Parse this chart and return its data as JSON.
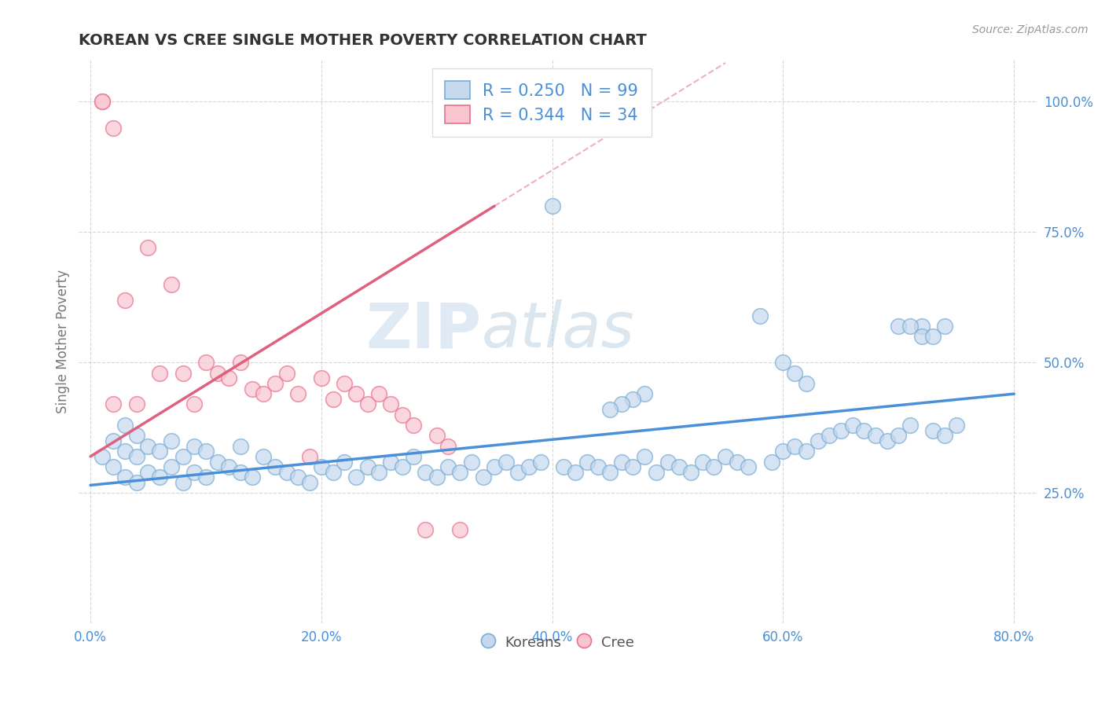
{
  "title": "KOREAN VS CREE SINGLE MOTHER POVERTY CORRELATION CHART",
  "source": "Source: ZipAtlas.com",
  "ylabel": "Single Mother Poverty",
  "xlim": [
    -0.01,
    0.82
  ],
  "ylim": [
    0.0,
    1.08
  ],
  "xtick_labels": [
    "0.0%",
    "20.0%",
    "40.0%",
    "60.0%",
    "80.0%"
  ],
  "xtick_vals": [
    0.0,
    0.2,
    0.4,
    0.6,
    0.8
  ],
  "ytick_labels": [
    "25.0%",
    "50.0%",
    "75.0%",
    "100.0%"
  ],
  "ytick_vals": [
    0.25,
    0.5,
    0.75,
    1.0
  ],
  "korean_fill": "#c5d8ee",
  "korean_edge": "#7aadd4",
  "cree_fill": "#f9c6d0",
  "cree_edge": "#e87090",
  "korean_line_color": "#4a90d9",
  "cree_line_color": "#e06080",
  "watermark_zip": "ZIP",
  "watermark_atlas": "atlas",
  "title_color": "#333333",
  "axis_label_color": "#777777",
  "tick_color": "#4a90d9",
  "grid_color": "#cccccc",
  "legend_text_color": "#4a90d9",
  "legend_korean_label": "R = 0.250   N = 99",
  "legend_cree_label": "R = 0.344   N = 34",
  "bottom_legend_color": "#555555",
  "korean_R": 0.25,
  "cree_R": 0.344,
  "korean_N": 99,
  "cree_N": 34,
  "korean_x": [
    0.01,
    0.02,
    0.02,
    0.03,
    0.03,
    0.03,
    0.04,
    0.04,
    0.04,
    0.05,
    0.05,
    0.06,
    0.06,
    0.07,
    0.07,
    0.08,
    0.08,
    0.09,
    0.09,
    0.1,
    0.1,
    0.11,
    0.12,
    0.13,
    0.13,
    0.14,
    0.15,
    0.16,
    0.17,
    0.18,
    0.19,
    0.2,
    0.21,
    0.22,
    0.23,
    0.24,
    0.25,
    0.26,
    0.27,
    0.28,
    0.29,
    0.3,
    0.31,
    0.32,
    0.33,
    0.34,
    0.35,
    0.36,
    0.37,
    0.38,
    0.39,
    0.4,
    0.41,
    0.42,
    0.43,
    0.44,
    0.45,
    0.46,
    0.47,
    0.48,
    0.49,
    0.5,
    0.51,
    0.52,
    0.53,
    0.54,
    0.55,
    0.56,
    0.57,
    0.58,
    0.59,
    0.6,
    0.61,
    0.62,
    0.63,
    0.64,
    0.65,
    0.66,
    0.67,
    0.68,
    0.69,
    0.7,
    0.71,
    0.72,
    0.73,
    0.74,
    0.75,
    0.7,
    0.71,
    0.72,
    0.73,
    0.74,
    0.6,
    0.61,
    0.62,
    0.48,
    0.47,
    0.46,
    0.45
  ],
  "korean_y": [
    0.32,
    0.3,
    0.35,
    0.28,
    0.33,
    0.38,
    0.27,
    0.32,
    0.36,
    0.29,
    0.34,
    0.28,
    0.33,
    0.3,
    0.35,
    0.27,
    0.32,
    0.29,
    0.34,
    0.28,
    0.33,
    0.31,
    0.3,
    0.29,
    0.34,
    0.28,
    0.32,
    0.3,
    0.29,
    0.28,
    0.27,
    0.3,
    0.29,
    0.31,
    0.28,
    0.3,
    0.29,
    0.31,
    0.3,
    0.32,
    0.29,
    0.28,
    0.3,
    0.29,
    0.31,
    0.28,
    0.3,
    0.31,
    0.29,
    0.3,
    0.31,
    0.8,
    0.3,
    0.29,
    0.31,
    0.3,
    0.29,
    0.31,
    0.3,
    0.32,
    0.29,
    0.31,
    0.3,
    0.29,
    0.31,
    0.3,
    0.32,
    0.31,
    0.3,
    0.59,
    0.31,
    0.33,
    0.34,
    0.33,
    0.35,
    0.36,
    0.37,
    0.38,
    0.37,
    0.36,
    0.35,
    0.36,
    0.38,
    0.57,
    0.37,
    0.36,
    0.38,
    0.57,
    0.57,
    0.55,
    0.55,
    0.57,
    0.5,
    0.48,
    0.46,
    0.44,
    0.43,
    0.42,
    0.41
  ],
  "cree_x": [
    0.01,
    0.01,
    0.02,
    0.02,
    0.03,
    0.04,
    0.05,
    0.06,
    0.07,
    0.08,
    0.09,
    0.1,
    0.11,
    0.12,
    0.13,
    0.14,
    0.15,
    0.16,
    0.17,
    0.18,
    0.19,
    0.2,
    0.21,
    0.22,
    0.23,
    0.24,
    0.25,
    0.26,
    0.27,
    0.28,
    0.29,
    0.3,
    0.31,
    0.32
  ],
  "cree_y": [
    1.0,
    1.0,
    0.95,
    0.42,
    0.62,
    0.42,
    0.72,
    0.48,
    0.65,
    0.48,
    0.42,
    0.5,
    0.48,
    0.47,
    0.5,
    0.45,
    0.44,
    0.46,
    0.48,
    0.44,
    0.32,
    0.47,
    0.43,
    0.46,
    0.44,
    0.42,
    0.44,
    0.42,
    0.4,
    0.38,
    0.18,
    0.36,
    0.34,
    0.18
  ]
}
